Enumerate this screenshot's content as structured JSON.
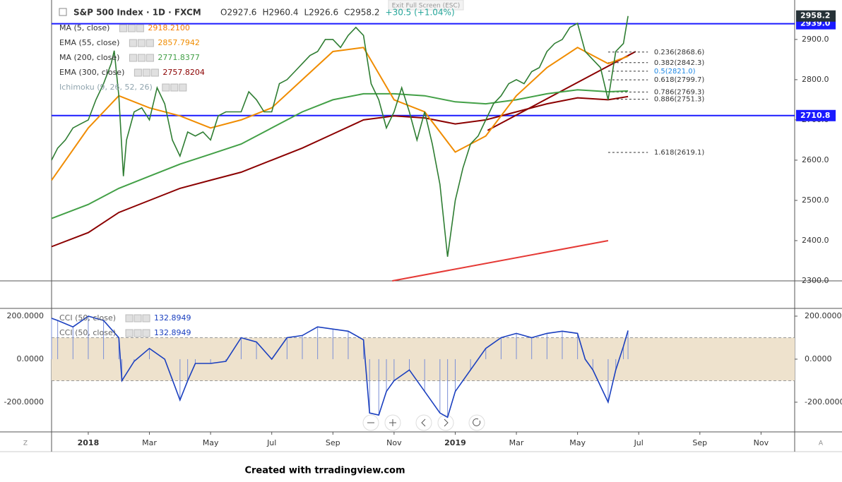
{
  "header": {
    "exit_button": "Exit Full Screen (ESC)",
    "symbol": "S&P 500 Index · 1D · FXCM",
    "ohlc": [
      "O2927.6",
      "H2960.4",
      "L2926.6",
      "C2958.2",
      "+30.5 (+1.04%)"
    ]
  },
  "footer": "Created with trradingview.com",
  "scale_buttons": [
    "Z",
    "A"
  ],
  "chart_data": [
    {
      "type": "line",
      "xlim": [
        -1.2,
        23.1
      ],
      "xticks": [
        {
          "value": 0,
          "label": "2018"
        },
        {
          "value": 2,
          "label": "Mar"
        },
        {
          "value": 4,
          "label": "May"
        },
        {
          "value": 6,
          "label": "Jul"
        },
        {
          "value": 8,
          "label": "Sep"
        },
        {
          "value": 10,
          "label": "Nov"
        },
        {
          "value": 12,
          "label": "2019"
        },
        {
          "value": 14,
          "label": "Mar"
        },
        {
          "value": 16,
          "label": "May"
        },
        {
          "value": 18,
          "label": "Jul"
        },
        {
          "value": 20,
          "label": "Sep"
        },
        {
          "value": 22,
          "label": "Nov"
        }
      ],
      "ylim": [
        2300,
        2998
      ],
      "yticks": [
        {
          "value": 2300,
          "label": "2300.0"
        },
        {
          "value": 2400,
          "label": "2400.0"
        },
        {
          "value": 2500,
          "label": "2500.0"
        },
        {
          "value": 2600,
          "label": "2600.0"
        },
        {
          "value": 2700,
          "label": "2700.0"
        },
        {
          "value": 2800,
          "label": "2800.0"
        },
        {
          "value": 2900,
          "label": "2900.0"
        }
      ],
      "legend": [
        {
          "name": "MA (5, close)",
          "value": "2918.2100",
          "color": "#f57c00"
        },
        {
          "name": "EMA (55, close)",
          "value": "2857.7942",
          "color": "#f08c00"
        },
        {
          "name": "MA (200, close)",
          "value": "2771.8377",
          "color": "#43a047"
        },
        {
          "name": "EMA (300, close)",
          "value": "2757.8204",
          "color": "#8b0000"
        },
        {
          "name": "Ichimoku (9, 26, 52, 26)",
          "color": "#90a4ae"
        }
      ],
      "series": [
        {
          "name": "S&P 500 Index",
          "color": "#2e7d32",
          "x": [
            -1.2,
            -1,
            -0.75,
            -0.5,
            -0.25,
            0,
            0.25,
            0.5,
            0.75,
            0.85,
            1.0,
            1.15,
            1.25,
            1.5,
            1.75,
            2.0,
            2.25,
            2.5,
            2.75,
            3.0,
            3.25,
            3.5,
            3.75,
            4.0,
            4.25,
            4.5,
            4.75,
            5.0,
            5.25,
            5.5,
            5.75,
            6.0,
            6.25,
            6.5,
            6.75,
            7.0,
            7.25,
            7.5,
            7.75,
            8.0,
            8.25,
            8.5,
            8.75,
            9.0,
            9.25,
            9.5,
            9.75,
            10.0,
            10.25,
            10.5,
            10.75,
            11.0,
            11.25,
            11.5,
            11.75,
            12.0,
            12.25,
            12.5,
            12.75,
            13.0,
            13.25,
            13.5,
            13.75,
            14.0,
            14.25,
            14.5,
            14.75,
            15.0,
            15.25,
            15.5,
            15.75,
            16.0,
            16.25,
            16.5,
            16.75,
            17.0,
            17.25,
            17.5,
            17.65
          ],
          "values": [
            2600,
            2630,
            2650,
            2680,
            2690,
            2700,
            2750,
            2790,
            2840,
            2872,
            2760,
            2560,
            2650,
            2720,
            2730,
            2700,
            2780,
            2740,
            2650,
            2610,
            2670,
            2660,
            2670,
            2650,
            2710,
            2720,
            2720,
            2720,
            2770,
            2750,
            2720,
            2720,
            2790,
            2800,
            2820,
            2840,
            2860,
            2870,
            2900,
            2900,
            2880,
            2910,
            2930,
            2910,
            2790,
            2750,
            2680,
            2720,
            2780,
            2720,
            2650,
            2720,
            2640,
            2540,
            2360,
            2500,
            2580,
            2640,
            2660,
            2700,
            2740,
            2760,
            2790,
            2800,
            2790,
            2820,
            2830,
            2870,
            2890,
            2900,
            2930,
            2940,
            2870,
            2850,
            2830,
            2750,
            2870,
            2890,
            2958.2
          ]
        },
        {
          "color": "#f08c00",
          "x": [
            -1.2,
            0,
            1,
            2,
            3,
            4,
            5,
            6,
            7,
            8,
            9,
            10,
            11,
            12,
            13,
            14,
            15,
            16,
            17,
            17.65
          ],
          "values": [
            2550,
            2680,
            2760,
            2730,
            2710,
            2680,
            2700,
            2730,
            2800,
            2870,
            2880,
            2750,
            2720,
            2620,
            2660,
            2760,
            2830,
            2880,
            2840,
            2858
          ]
        },
        {
          "color": "#43a047",
          "x": [
            -1.2,
            0,
            1,
            2,
            3,
            4,
            5,
            6,
            7,
            8,
            9,
            10,
            11,
            12,
            13,
            14,
            15,
            16,
            17,
            17.65
          ],
          "values": [
            2455,
            2490,
            2530,
            2560,
            2590,
            2615,
            2640,
            2680,
            2720,
            2750,
            2765,
            2765,
            2760,
            2745,
            2740,
            2750,
            2765,
            2775,
            2770,
            2772
          ]
        },
        {
          "color": "#8b0000",
          "x": [
            -1.2,
            0,
            1,
            2,
            3,
            4,
            5,
            6,
            7,
            8,
            9,
            10,
            11,
            12,
            13,
            14,
            15,
            16,
            17,
            17.65
          ],
          "values": [
            2385,
            2420,
            2470,
            2500,
            2530,
            2550,
            2570,
            2600,
            2630,
            2665,
            2700,
            2710,
            2705,
            2690,
            2700,
            2720,
            2740,
            2755,
            2750,
            2758
          ]
        }
      ],
      "last_price": 2958.2,
      "hlines": [
        {
          "value": 2939.0,
          "label": "2939.0",
          "color": "#1a1aff"
        },
        {
          "value": 2710.8,
          "color": "#1a1aff"
        }
      ],
      "fib": [
        {
          "value": 2868.6,
          "label": "0.236(2868.6)"
        },
        {
          "value": 2842.3,
          "label": "0.382(2842.3)"
        },
        {
          "value": 2821.0,
          "label": "0.5(2821.0)",
          "color": "#1e88e5"
        },
        {
          "value": 2799.7,
          "label": "0.618(2799.7)"
        },
        {
          "value": 2769.3,
          "label": "0.786(2769.3)"
        },
        {
          "value": 2751.3,
          "label": "0.886(2751.3)"
        },
        {
          "value": 2619.1,
          "label": "1.618(2619.1)"
        }
      ],
      "trendlines": [
        {
          "x": [
            9.94,
            17.0
          ],
          "values": [
            2300,
            2400
          ],
          "color": "#e53935"
        },
        {
          "x": [
            13.06,
            17.9
          ],
          "values": [
            2674,
            2870
          ],
          "color": "#8b0000"
        }
      ]
    },
    {
      "type": "line",
      "legend": [
        {
          "name": "CCI (50, close)",
          "value": "132.8949"
        },
        {
          "name": "CCI (50, close)",
          "value": "132.8949"
        }
      ],
      "ylim": [
        -338,
        236
      ],
      "yticks": [
        {
          "value": 200,
          "label": "200.0000"
        },
        {
          "value": 0,
          "label": "0.0000"
        },
        {
          "value": -200,
          "label": "-200.0000"
        }
      ],
      "band": [
        -100,
        100
      ],
      "series": [
        {
          "color": "#1a3fbf",
          "x": [
            -1.2,
            -1,
            -0.5,
            0,
            0.5,
            1.0,
            1.1,
            1.5,
            2,
            2.5,
            3,
            3.25,
            3.5,
            4,
            4.5,
            5,
            5.5,
            6,
            6.5,
            7,
            7.5,
            8,
            8.5,
            9,
            9.2,
            9.5,
            9.75,
            10,
            10.5,
            11,
            11.5,
            11.75,
            12,
            12.5,
            13,
            13.5,
            14,
            14.5,
            15,
            15.5,
            16,
            16.25,
            16.5,
            17,
            17.25,
            17.5,
            17.65
          ],
          "values": [
            190,
            180,
            150,
            200,
            180,
            100,
            -100,
            -10,
            50,
            0,
            -190,
            -100,
            -20,
            -20,
            -10,
            100,
            80,
            0,
            100,
            110,
            150,
            140,
            130,
            90,
            -250,
            -260,
            -150,
            -100,
            -50,
            -150,
            -250,
            -270,
            -150,
            -50,
            50,
            100,
            120,
            100,
            120,
            130,
            120,
            0,
            -50,
            -200,
            -50,
            60,
            132.8949
          ]
        }
      ]
    }
  ]
}
